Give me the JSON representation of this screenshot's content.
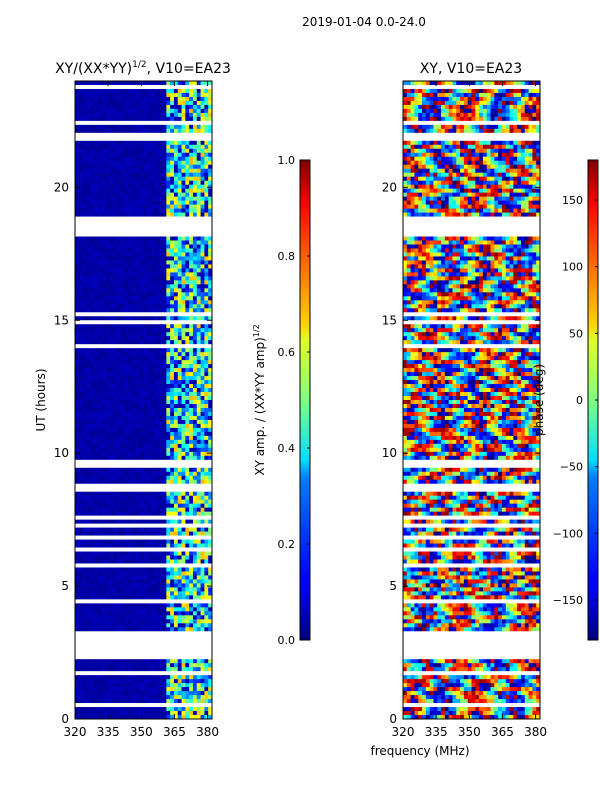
{
  "suptitle": "2019-01-04 0.0-24.0",
  "chart_data": [
    {
      "type": "heatmap",
      "title": "XY/(XX*YY)",
      "title_sup": "1/2",
      "title_suffix": ", V10=EA23",
      "ylabel": "UT (hours)",
      "xlabel": "",
      "xlim": [
        320,
        382
      ],
      "ylim": [
        0,
        24
      ],
      "xticks": [
        "320",
        "335",
        "350",
        "365",
        "380"
      ],
      "xtick_values": [
        320,
        335,
        350,
        365,
        380
      ],
      "yticks": [
        "0",
        "5",
        "10",
        "15",
        "20"
      ],
      "ytick_values": [
        0,
        5,
        10,
        15,
        20
      ],
      "colorscale": "jet",
      "active_band_mhz": [
        362,
        382
      ],
      "colorbar": {
        "label": "XY amp. / (XX*YY amp)",
        "label_sup": "1/2",
        "range": [
          0.0,
          1.0
        ],
        "ticks": [
          "0.0",
          "0.2",
          "0.4",
          "0.6",
          "0.8",
          "1.0"
        ],
        "tick_values": [
          0.0,
          0.2,
          0.4,
          0.6,
          0.8,
          1.0
        ]
      }
    },
    {
      "type": "heatmap",
      "title": "XY, V10=EA23",
      "ylabel": "",
      "xlabel": "frequency (MHz)",
      "xlim": [
        320,
        382
      ],
      "ylim": [
        0,
        24
      ],
      "xticks": [
        "320",
        "335",
        "350",
        "365",
        "380"
      ],
      "xtick_values": [
        320,
        335,
        350,
        365,
        380
      ],
      "yticks": [
        "0",
        "5",
        "10",
        "15",
        "20"
      ],
      "ytick_values": [
        0,
        5,
        10,
        15,
        20
      ],
      "colorscale": "jet",
      "colorbar": {
        "label": "phase (deg)",
        "range": [
          -180,
          180
        ],
        "ticks": [
          "−150",
          "−100",
          "−50",
          "0",
          "50",
          "100",
          "150"
        ],
        "tick_values": [
          -150,
          -100,
          -50,
          0,
          50,
          100,
          150
        ]
      }
    }
  ],
  "data_gaps_ut_hours": [
    [
      2.2,
      3.2
    ],
    [
      18.2,
      18.9
    ]
  ],
  "colors": {
    "background": "#ffffff",
    "axes": "#000000"
  }
}
